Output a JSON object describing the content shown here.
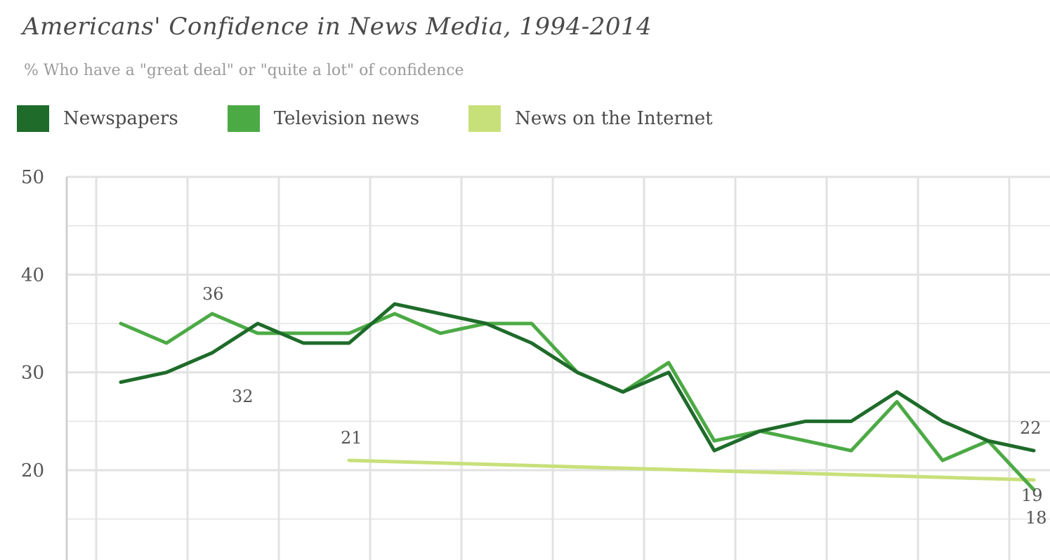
{
  "title": "Americans' Confidence in News Media, 1994-2014",
  "subtitle": "% Who have a \"great deal\" or \"quite a lot\" of confidence",
  "colors": {
    "newspapers": "#1e6b2a",
    "television": "#4caa45",
    "internet": "#c8e07a",
    "grid": "#e2e2e2"
  },
  "chart_data": {
    "type": "line",
    "title": "Americans' Confidence in News Media, 1994-2014",
    "subtitle": "% Who have a \"great deal\" or \"quite a lot\" of confidence",
    "xlabel": "",
    "ylabel": "",
    "ylim": [
      10,
      50
    ],
    "yticks": [
      20,
      30,
      40,
      50
    ],
    "xlim": [
      1993.5,
      2014.5
    ],
    "grid": true,
    "legend": "top-left",
    "x": [
      1994,
      1995,
      1996,
      1997,
      1998,
      1999,
      2000,
      2001,
      2002,
      2003,
      2004,
      2005,
      2006,
      2007,
      2008,
      2009,
      2010,
      2011,
      2012,
      2013,
      2014
    ],
    "series": [
      {
        "name": "Newspapers",
        "color": "#1e6b2a",
        "x": [
          1994,
          1995,
          1996,
          1997,
          1998,
          1999,
          2000,
          2001,
          2002,
          2003,
          2004,
          2005,
          2006,
          2007,
          2008,
          2009,
          2010,
          2011,
          2012,
          2013,
          2014
        ],
        "values": [
          29,
          30,
          32,
          35,
          33,
          33,
          37,
          36,
          35,
          33,
          30,
          28,
          30,
          22,
          24,
          25,
          25,
          28,
          25,
          23,
          22
        ]
      },
      {
        "name": "Television news",
        "color": "#4caa45",
        "x": [
          1994,
          1995,
          1996,
          1997,
          1998,
          1999,
          2000,
          2001,
          2002,
          2003,
          2004,
          2005,
          2006,
          2007,
          2008,
          2009,
          2010,
          2011,
          2012,
          2013,
          2014
        ],
        "values": [
          35,
          33,
          36,
          34,
          34,
          34,
          36,
          34,
          35,
          35,
          30,
          28,
          31,
          23,
          24,
          23,
          22,
          27,
          21,
          23,
          18
        ]
      },
      {
        "name": "News on the Internet",
        "color": "#c8e07a",
        "x": [
          1999,
          2014
        ],
        "values": [
          21,
          19
        ]
      }
    ],
    "annotations": [
      {
        "text": "36",
        "series": "Television news",
        "x": 1996,
        "y": 36
      },
      {
        "text": "32",
        "series": "Newspapers",
        "x": 1996,
        "y": 32
      },
      {
        "text": "21",
        "series": "News on the Internet",
        "x": 1999,
        "y": 21
      },
      {
        "text": "22",
        "series": "Newspapers",
        "x": 2014,
        "y": 22
      },
      {
        "text": "19",
        "series": "News on the Internet",
        "x": 2014,
        "y": 19
      },
      {
        "text": "18",
        "series": "Television news",
        "x": 2014,
        "y": 18
      }
    ]
  }
}
